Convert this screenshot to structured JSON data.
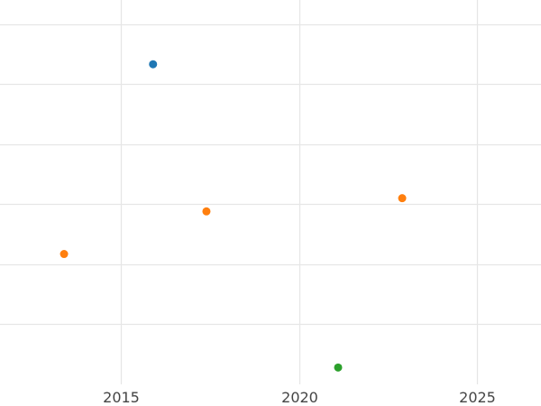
{
  "chart_data": {
    "type": "scatter",
    "title": "",
    "xlabel": "",
    "ylabel": "",
    "grid": true,
    "legend": "none",
    "xlim": [
      2011.6,
      2026.8
    ],
    "ylim": [
      0,
      6.4
    ],
    "x_ticks": [
      2015,
      2020,
      2025
    ],
    "x_tick_labels": [
      "2015",
      "2020",
      "2025"
    ],
    "y_gridlines": [
      1,
      2,
      3,
      4,
      5,
      6
    ],
    "series": [
      {
        "color": "#1f77b4",
        "points": [
          {
            "x": 2015.9,
            "y": 5.33
          }
        ]
      },
      {
        "color": "#ff7f0e",
        "points": [
          {
            "x": 2013.4,
            "y": 2.17
          },
          {
            "x": 2017.4,
            "y": 2.88
          },
          {
            "x": 2022.9,
            "y": 3.1
          }
        ]
      },
      {
        "color": "#2ca02c",
        "points": [
          {
            "x": 2021.1,
            "y": 0.28
          }
        ]
      }
    ]
  },
  "colors": {
    "grid": "#e6e6e6",
    "tick_text": "#444444",
    "background": "#ffffff"
  }
}
